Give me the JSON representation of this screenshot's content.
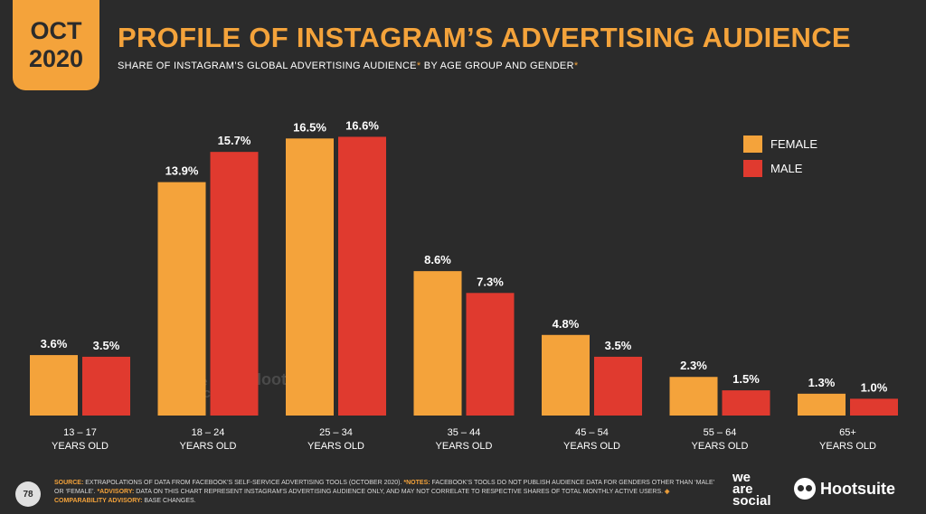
{
  "header": {
    "date_month": "OCT",
    "date_year": "2020",
    "title": "PROFILE OF INSTAGRAM’S ADVERTISING AUDIENCE",
    "subtitle_part1": "SHARE OF INSTAGRAM’S GLOBAL ADVERTISING AUDIENCE",
    "subtitle_ast1": "*",
    "subtitle_part2": " BY AGE GROUP AND GENDER",
    "subtitle_ast2": "*"
  },
  "colors": {
    "female": "#f4a33b",
    "male": "#e03a2f",
    "background": "#2b2b2b",
    "accent": "#f4a33b"
  },
  "chart_data": {
    "type": "bar",
    "title": "",
    "xlabel": "",
    "ylabel": "",
    "categories": [
      [
        "13 – 17",
        "YEARS OLD"
      ],
      [
        "18 – 24",
        "YEARS OLD"
      ],
      [
        "25 – 34",
        "YEARS OLD"
      ],
      [
        "35 – 44",
        "YEARS OLD"
      ],
      [
        "45 – 54",
        "YEARS OLD"
      ],
      [
        "55 – 64",
        "YEARS OLD"
      ],
      [
        "65+",
        "YEARS OLD"
      ]
    ],
    "series": [
      {
        "name": "FEMALE",
        "values": [
          3.6,
          13.9,
          16.5,
          8.6,
          4.8,
          2.3,
          1.3
        ],
        "labels": [
          "3.6%",
          "13.9%",
          "16.5%",
          "8.6%",
          "4.8%",
          "2.3%",
          "1.3%"
        ]
      },
      {
        "name": "MALE",
        "values": [
          3.5,
          15.7,
          16.6,
          7.3,
          3.5,
          1.5,
          1.0
        ],
        "labels": [
          "3.5%",
          "15.7%",
          "16.6%",
          "7.3%",
          "3.5%",
          "1.5%",
          "1.0%"
        ]
      }
    ],
    "ylim": [
      0,
      17
    ],
    "grid": false,
    "legend": "top-right"
  },
  "watermark": {
    "social_1": "we",
    "social_2": "are",
    "social_3": "social",
    "hootsuite": "Hootsuite"
  },
  "footer": {
    "source_label": "SOURCE:",
    "source_text": " EXTRAPOLATIONS OF DATA FROM FACEBOOK’S SELF-SERVICE ADVERTISING TOOLS (OCTOBER 2020).",
    "notes_label": " *NOTES:",
    "notes_text": " FACEBOOK’S TOOLS DO NOT PUBLISH AUDIENCE DATA FOR GENDERS OTHER THAN ‘MALE’ OR ‘FEMALE’.",
    "advisory_label": " *ADVISORY:",
    "advisory_text": " DATA ON THIS CHART REPRESENT INSTAGRAM’S ADVERTISING AUDIENCE ONLY, AND MAY NOT CORRELATE TO RESPECTIVE SHARES OF TOTAL MONTHLY ACTIVE USERS.",
    "comparability_label": " ◈ COMPARABILITY ADVISORY:",
    "comparability_text": " BASE CHANGES.",
    "page_number": "78"
  },
  "brand": {
    "ws_1": "we",
    "ws_2": "are",
    "ws_3": "social",
    "hootsuite": "Hootsuite"
  }
}
